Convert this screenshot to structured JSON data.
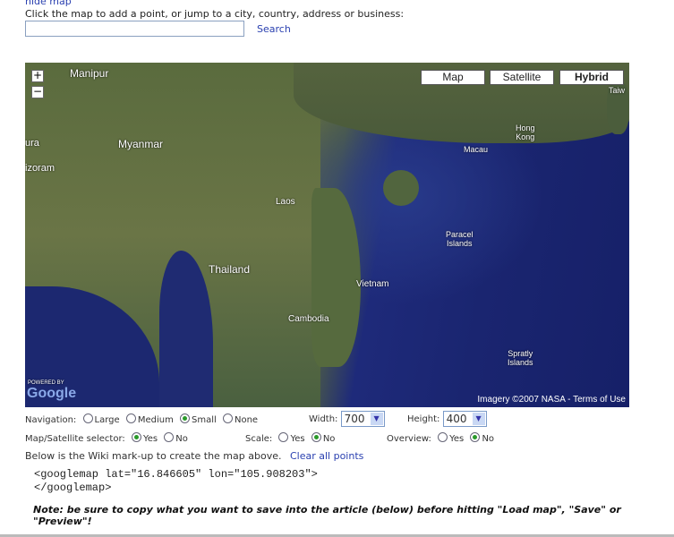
{
  "top": {
    "hide_map": "hide map",
    "instruction": "Click the map to add a point, or jump to a city, country, address or business:",
    "search_value": "",
    "search_label": "Search"
  },
  "map": {
    "type_buttons": [
      "Map",
      "Satellite",
      "Hybrid"
    ],
    "selected_type": "Hybrid",
    "zoom_in": "+",
    "zoom_out": "−",
    "labels": {
      "manipur": "Manipur",
      "myanmar": "Myanmar",
      "ura": "ura",
      "izoram": "izoram",
      "laos": "Laos",
      "thailand": "Thailand",
      "cambodia": "Cambodia",
      "vietnam": "Vietnam",
      "macau": "Macau",
      "hongkong": "Hong\nKong",
      "taiwan": "Taiw",
      "paracel": "Paracel\nIslands",
      "spratly": "Spratly\nIslands"
    },
    "powered_by": "POWERED BY",
    "logo": "Google",
    "attribution": "Imagery ©2007 NASA - ",
    "terms": "Terms of Use"
  },
  "options": {
    "navigation_label": "Navigation:",
    "navigation": [
      {
        "label": "Large",
        "checked": false
      },
      {
        "label": "Medium",
        "checked": false
      },
      {
        "label": "Small",
        "checked": true
      },
      {
        "label": "None",
        "checked": false
      }
    ],
    "width_label": "Width:",
    "width_value": "700",
    "height_label": "Height:",
    "height_value": "400",
    "selector_label": "Map/Satellite selector:",
    "selector": [
      {
        "label": "Yes",
        "checked": true
      },
      {
        "label": "No",
        "checked": false
      }
    ],
    "scale_label": "Scale:",
    "scale": [
      {
        "label": "Yes",
        "checked": false
      },
      {
        "label": "No",
        "checked": true
      }
    ],
    "overview_label": "Overview:",
    "overview": [
      {
        "label": "Yes",
        "checked": false
      },
      {
        "label": "No",
        "checked": true
      }
    ]
  },
  "markup": {
    "intro": "Below is the Wiki mark-up to create the map above.",
    "clear": "Clear all points",
    "code": "<googlemap lat=\"16.846605\" lon=\"105.908203\">\n</googlemap>",
    "note": "Note: be sure to copy what you want to save into the article (below) before hitting \"Load map\", \"Save\" or \"Preview\"!"
  }
}
